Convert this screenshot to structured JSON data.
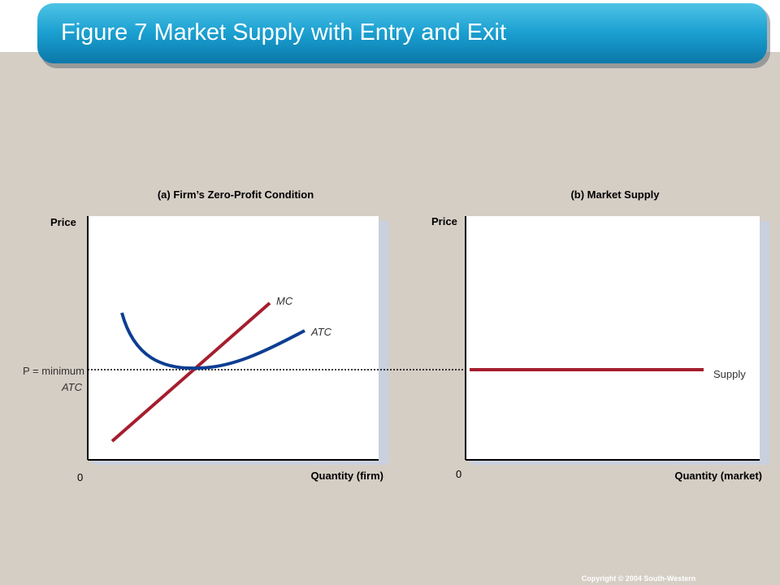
{
  "header": {
    "title": "Figure 7 Market Supply with Entry and Exit"
  },
  "panels": [
    {
      "title": "(a) Firm’s Zero-Profit Condition",
      "y_label": "Price",
      "origin": "0",
      "x_label": "Quantity (firm)",
      "curves": [
        {
          "label": "MC"
        },
        {
          "label": "ATC"
        }
      ],
      "price_label": [
        "P = minimum",
        "ATC"
      ]
    },
    {
      "title": "(b) Market Supply",
      "y_label": "Price",
      "origin": "0",
      "x_label": "Quantity (market)",
      "curves": [
        {
          "label": "Supply"
        }
      ]
    }
  ],
  "footer": {
    "copyright": "Copyright © 2004  South-Western"
  }
}
